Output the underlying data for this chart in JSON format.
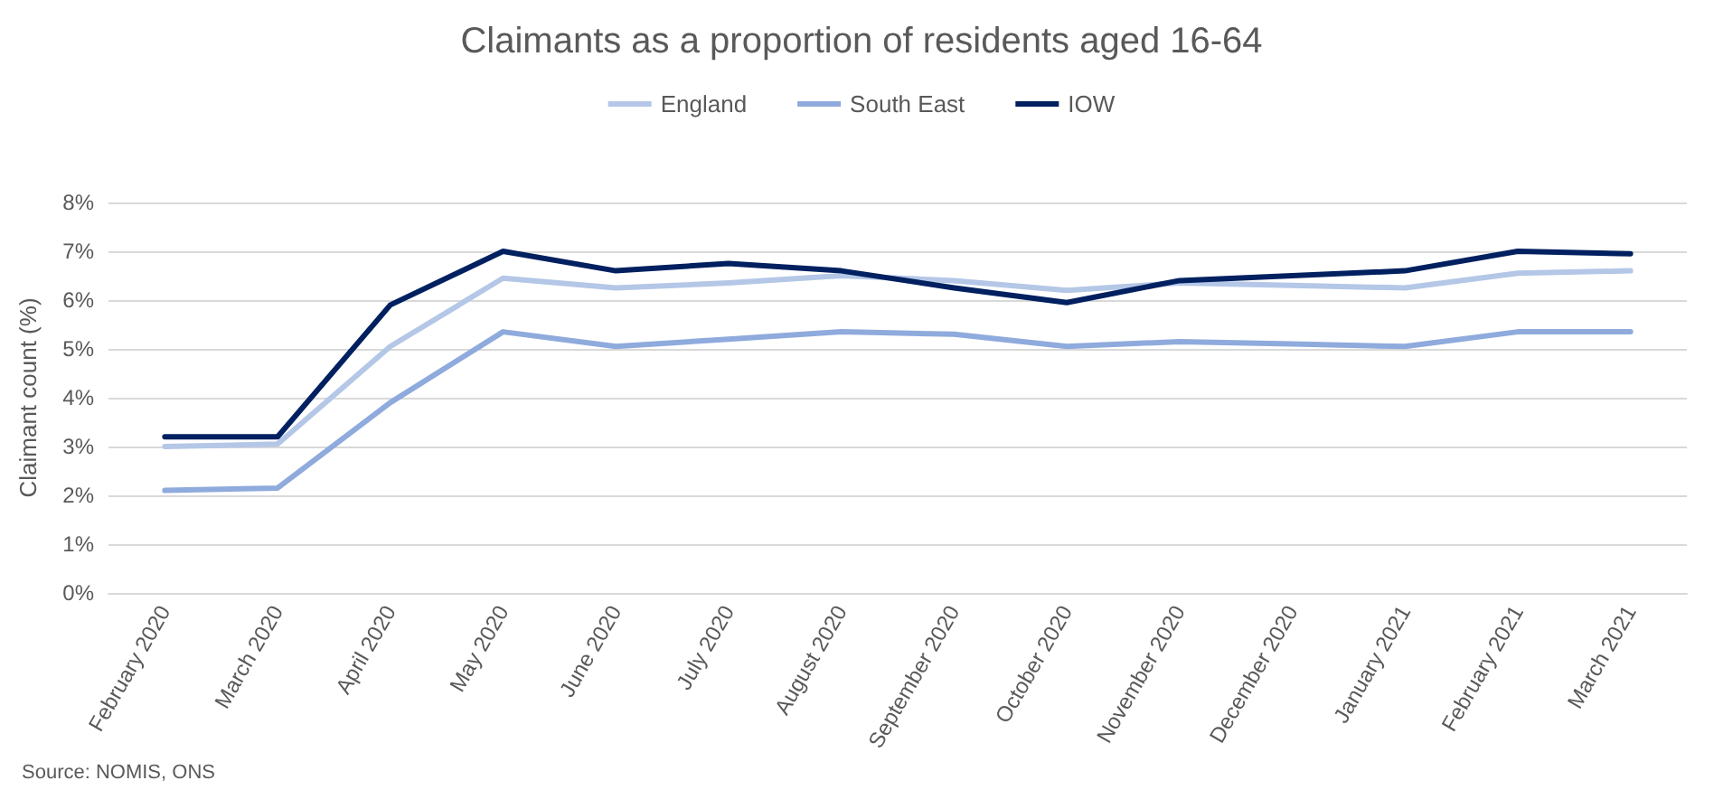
{
  "chart_data": {
    "type": "line",
    "title": "Claimants as a proportion of residents aged 16-64",
    "ylabel": "Claimant count (%)",
    "categories": [
      "February 2020",
      "March 2020",
      "April 2020",
      "May 2020",
      "June 2020",
      "July 2020",
      "August 2020",
      "September 2020",
      "October 2020",
      "November 2020",
      "December 2020",
      "January 2021",
      "February 2021",
      "March 2021"
    ],
    "series": [
      {
        "name": "England",
        "color": "#b4c7e7",
        "values": [
          3.0,
          3.05,
          5.05,
          6.45,
          6.25,
          6.35,
          6.5,
          6.4,
          6.2,
          6.35,
          6.3,
          6.25,
          6.55,
          6.6
        ]
      },
      {
        "name": "South East",
        "color": "#8faadc",
        "values": [
          2.1,
          2.15,
          3.9,
          5.35,
          5.05,
          5.2,
          5.35,
          5.3,
          5.05,
          5.15,
          5.1,
          5.05,
          5.35,
          5.35
        ]
      },
      {
        "name": "IOW",
        "color": "#002060",
        "values": [
          3.2,
          3.2,
          5.9,
          7.0,
          6.6,
          6.75,
          6.6,
          6.25,
          5.95,
          6.4,
          6.5,
          6.6,
          7.0,
          6.95
        ]
      }
    ],
    "ylim": [
      0,
      8
    ],
    "yticks": [
      {
        "value": 0,
        "label": "0%"
      },
      {
        "value": 1,
        "label": "1%"
      },
      {
        "value": 2,
        "label": "2%"
      },
      {
        "value": 3,
        "label": "3%"
      },
      {
        "value": 4,
        "label": "4%"
      },
      {
        "value": 5,
        "label": "5%"
      },
      {
        "value": 6,
        "label": "6%"
      },
      {
        "value": 7,
        "label": "7%"
      },
      {
        "value": 8,
        "label": "8%"
      }
    ],
    "grid": "y",
    "legend": "top",
    "marker": "none",
    "line_style": "solid",
    "annotations": [
      "Source: NOMIS, ONS"
    ]
  }
}
